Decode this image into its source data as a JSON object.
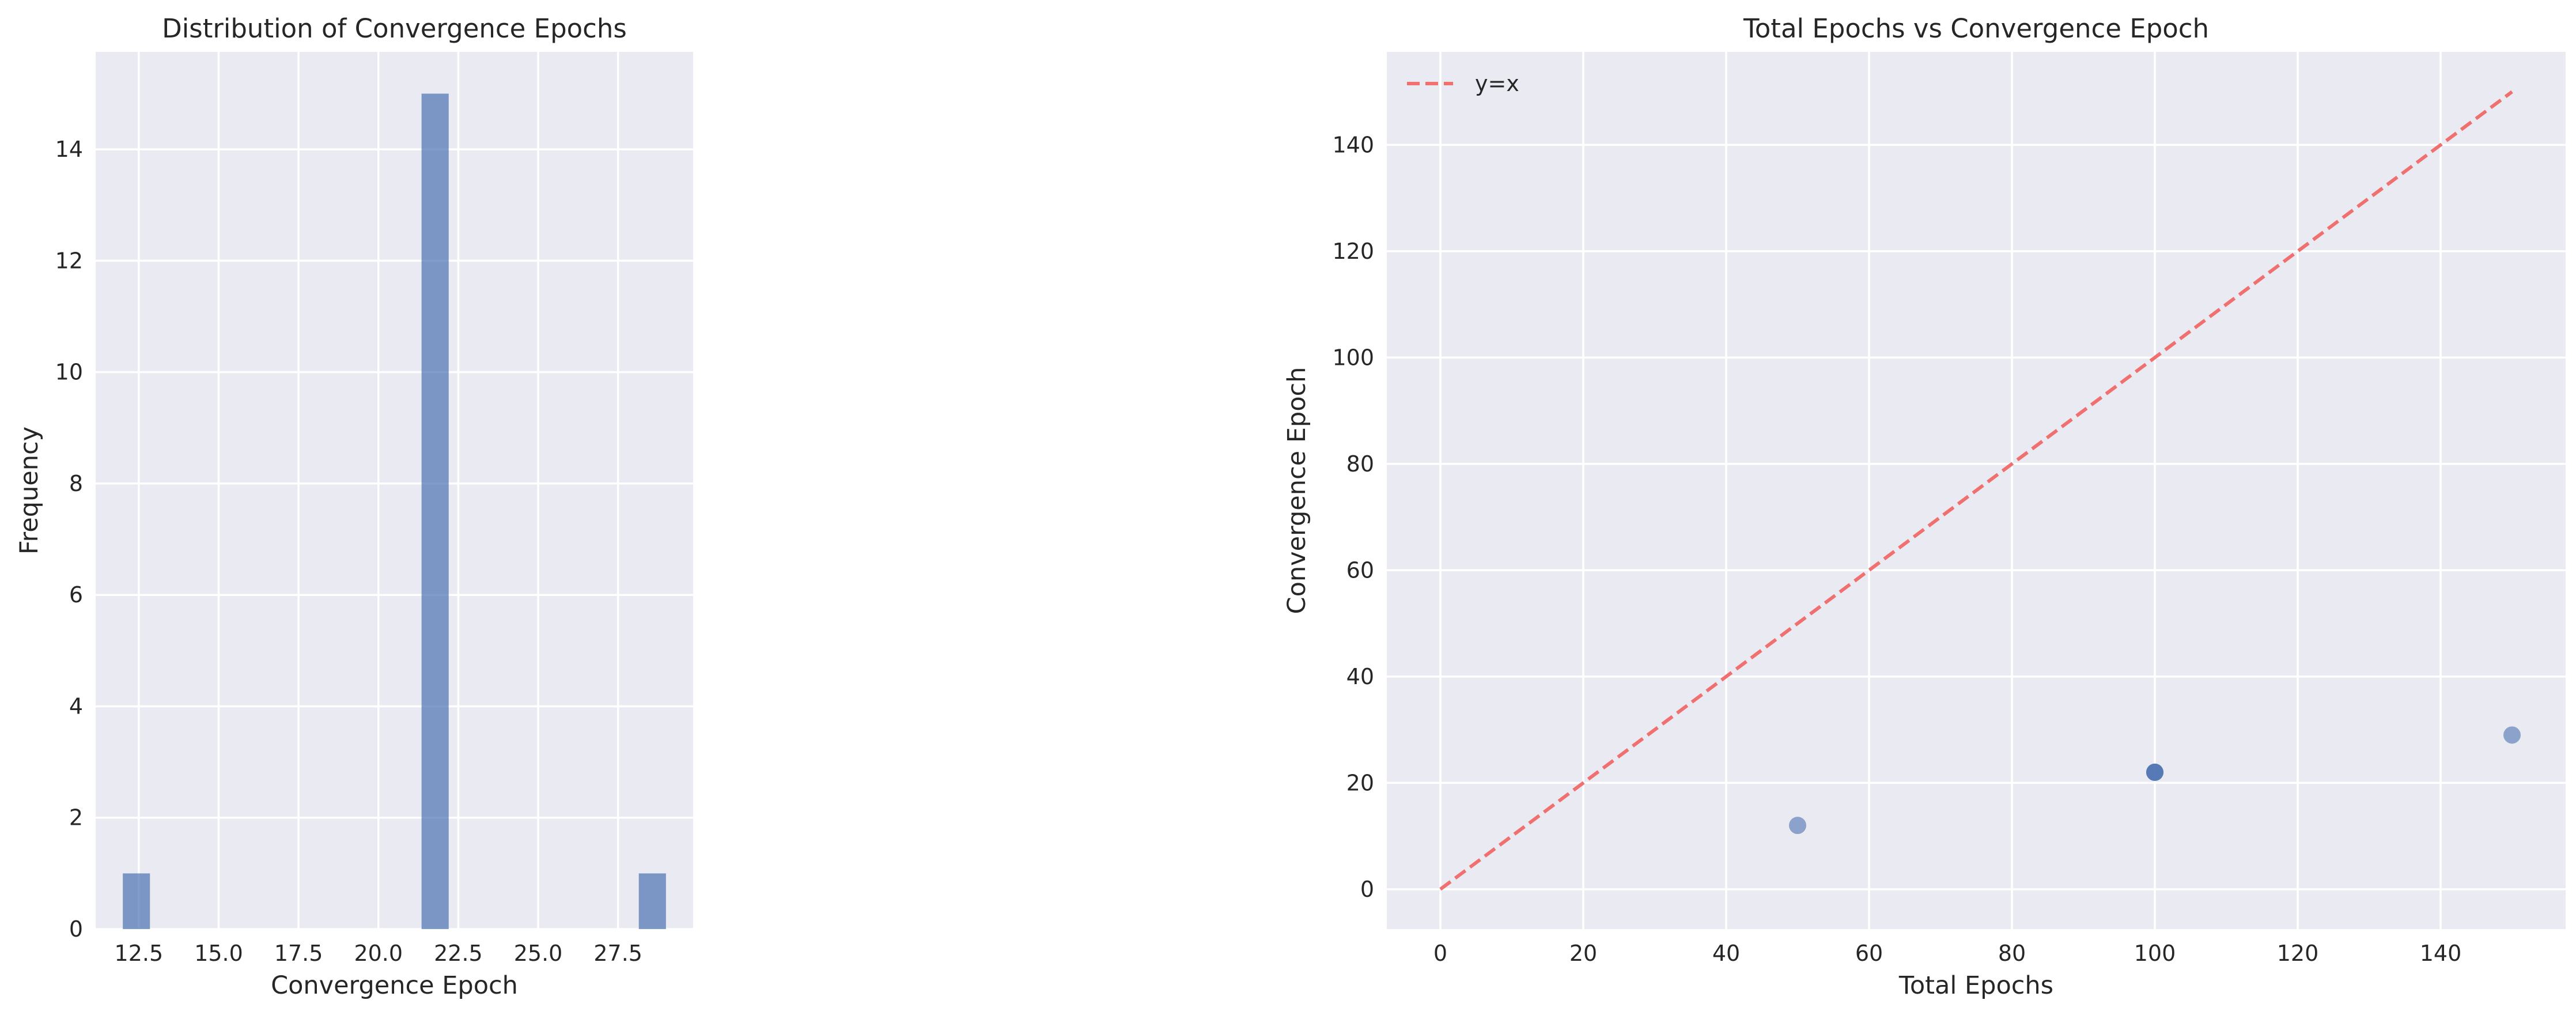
{
  "colors": {
    "axes_bg": "#eaeaf2",
    "grid": "#ffffff",
    "bar": "#4c72b0",
    "point": "#4c72b0",
    "reference_line": "#f07070"
  },
  "chart_data": [
    {
      "type": "bar",
      "title": "Distribution of Convergence Epochs",
      "xlabel": "Convergence Epoch",
      "ylabel": "Frequency",
      "xlim": [
        11.15,
        29.85
      ],
      "ylim": [
        0,
        15.75
      ],
      "xticks": [
        12.5,
        15.0,
        17.5,
        20.0,
        22.5,
        25.0,
        27.5
      ],
      "xtick_labels": [
        "12.5",
        "15.0",
        "17.5",
        "20.0",
        "22.5",
        "25.0",
        "27.5"
      ],
      "yticks": [
        0,
        2,
        4,
        6,
        8,
        10,
        12,
        14
      ],
      "ytick_labels": [
        "0",
        "2",
        "4",
        "6",
        "8",
        "10",
        "12",
        "14"
      ],
      "bins": [
        {
          "x0": 12.0,
          "x1": 12.85,
          "count": 1
        },
        {
          "x0": 21.35,
          "x1": 22.2,
          "count": 15
        },
        {
          "x0": 28.15,
          "x1": 29.0,
          "count": 1
        }
      ],
      "grid": true
    },
    {
      "type": "scatter",
      "title": "Total Epochs vs Convergence Epoch",
      "xlabel": "Total Epochs",
      "ylabel": "Convergence Epoch",
      "xlim": [
        -7.5,
        157.5
      ],
      "ylim": [
        -7.5,
        157.5
      ],
      "xticks": [
        0,
        20,
        40,
        60,
        80,
        100,
        120,
        140
      ],
      "xtick_labels": [
        "0",
        "20",
        "40",
        "60",
        "80",
        "100",
        "120",
        "140"
      ],
      "yticks": [
        0,
        20,
        40,
        60,
        80,
        100,
        120,
        140
      ],
      "ytick_labels": [
        "0",
        "20",
        "40",
        "60",
        "80",
        "100",
        "120",
        "140"
      ],
      "points": [
        {
          "x": 50,
          "y": 12
        },
        {
          "x": 100,
          "y": 22
        },
        {
          "x": 100,
          "y": 22
        },
        {
          "x": 100,
          "y": 22
        },
        {
          "x": 150,
          "y": 29
        }
      ],
      "reference_line": {
        "label": "y=x",
        "x": [
          0,
          150
        ],
        "y": [
          0,
          150
        ]
      },
      "legend": {
        "position": "top-left",
        "entries": [
          "y=x"
        ]
      },
      "grid": true
    }
  ]
}
